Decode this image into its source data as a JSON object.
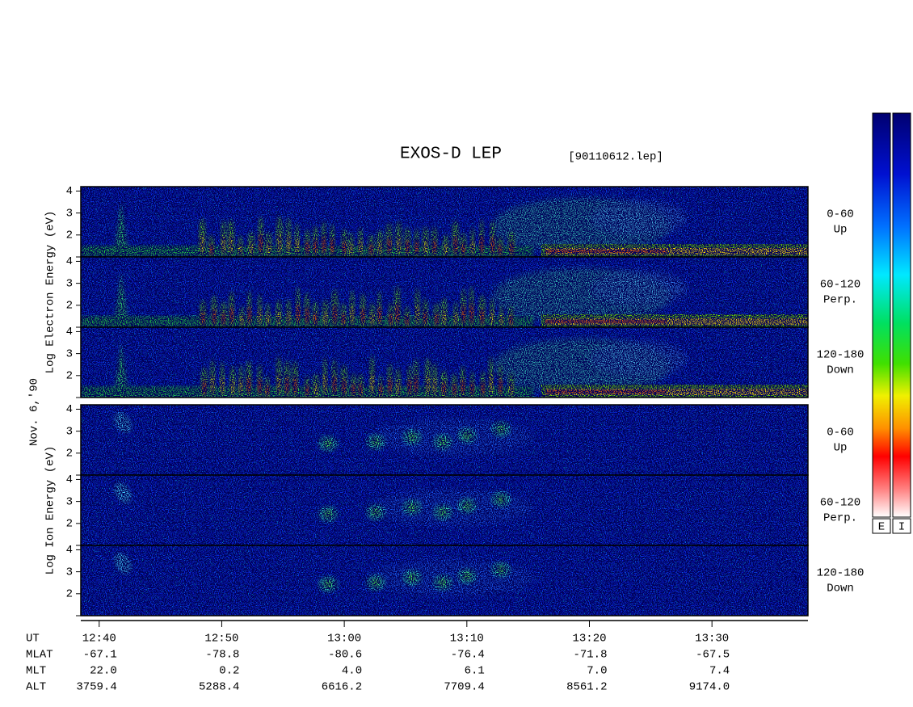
{
  "title": "EXOS-D LEP",
  "file": "[90110612.lep]",
  "date": "Nov. 6,'90",
  "groups": [
    {
      "axis_label": "Log Electron Energy (eV)",
      "panels": [
        {
          "range": "0-60",
          "direction": "Up"
        },
        {
          "range": "60-120",
          "direction": "Perp."
        },
        {
          "range": "120-180",
          "direction": "Down"
        }
      ]
    },
    {
      "axis_label": "Log Ion Energy (eV)",
      "panels": [
        {
          "range": "0-60",
          "direction": "Up"
        },
        {
          "range": "60-120",
          "direction": "Perp."
        },
        {
          "range": "120-180",
          "direction": "Down"
        }
      ]
    }
  ],
  "energy_axis": {
    "ylim": [
      1,
      4.2
    ],
    "yticks": [
      2,
      3,
      4
    ]
  },
  "time_axis": {
    "label": "UT",
    "xlim": [
      "12:38:30",
      "13:37:50"
    ],
    "xticks": [
      "12:40",
      "12:50",
      "13:00",
      "13:10",
      "13:20",
      "13:30"
    ]
  },
  "ephemeris": {
    "rows": [
      {
        "label": "MLAT",
        "values": [
          "-67.1",
          "-78.8",
          "-80.6",
          "-76.4",
          "-71.8",
          "-67.5"
        ]
      },
      {
        "label": "MLT",
        "values": [
          "22.0",
          "0.2",
          "4.0",
          "6.1",
          "7.0",
          "7.4"
        ]
      },
      {
        "label": "ALT",
        "values": [
          "3759.4",
          "5288.4",
          "6616.2",
          "7709.4",
          "8561.2",
          "9174.0"
        ]
      }
    ]
  },
  "colorbar_labels": [
    "E",
    "I"
  ]
}
